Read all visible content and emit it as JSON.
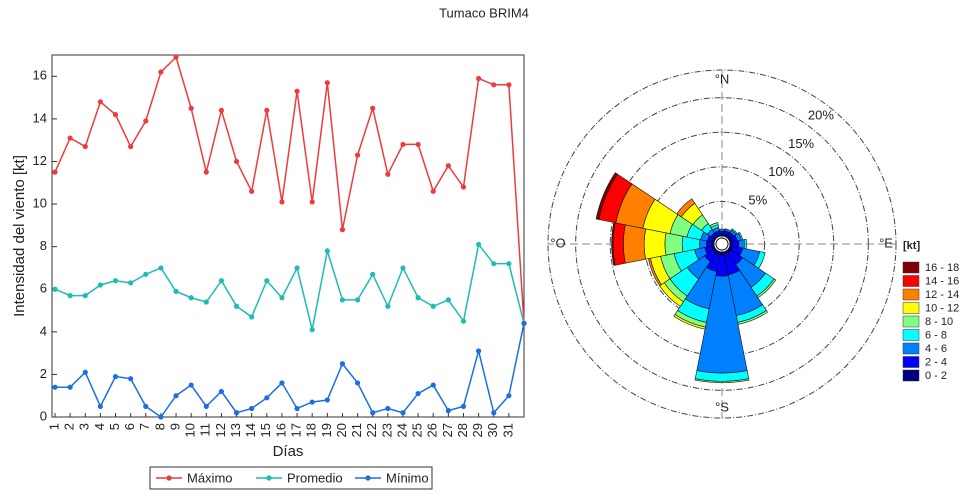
{
  "title": "Tumaco BRIM4",
  "chart_data": [
    {
      "type": "line",
      "ylabel": "Intensidad del viento [kt]",
      "xlabel": "Días",
      "categories": [
        "1",
        "2",
        "3",
        "4",
        "5",
        "6",
        "7",
        "8",
        "9",
        "10",
        "11",
        "12",
        "13",
        "14",
        "15",
        "16",
        "17",
        "18",
        "19",
        "20",
        "21",
        "22",
        "23",
        "24",
        "25",
        "26",
        "27",
        "28",
        "29",
        "30",
        "31",
        null
      ],
      "ylim": [
        0,
        17
      ],
      "yticks": [
        0,
        2,
        4,
        6,
        8,
        10,
        12,
        14,
        16
      ],
      "series": [
        {
          "name": "Máximo",
          "color": "#ee3b3b",
          "values": [
            11.5,
            13.1,
            12.7,
            14.8,
            14.2,
            12.7,
            13.9,
            16.2,
            16.9,
            14.5,
            11.5,
            14.4,
            12.0,
            10.6,
            14.4,
            10.1,
            15.3,
            10.1,
            15.7,
            8.8,
            12.3,
            14.5,
            11.4,
            12.8,
            12.8,
            10.6,
            11.8,
            10.8,
            15.9,
            15.6,
            15.6,
            4.4
          ]
        },
        {
          "name": "Promedio",
          "color": "#1fbcb4",
          "values": [
            6.0,
            5.7,
            5.7,
            6.2,
            6.4,
            6.3,
            6.7,
            7.0,
            5.9,
            5.6,
            5.4,
            6.4,
            5.2,
            4.7,
            6.4,
            5.6,
            7.0,
            4.1,
            7.8,
            5.5,
            5.5,
            6.7,
            5.2,
            7.0,
            5.6,
            5.2,
            5.5,
            4.5,
            8.1,
            7.2,
            7.2,
            4.4
          ]
        },
        {
          "name": "Mínimo",
          "color": "#1c6fe3",
          "values": [
            1.4,
            1.4,
            2.1,
            0.5,
            1.9,
            1.8,
            0.5,
            0.0,
            1.0,
            1.5,
            0.5,
            1.2,
            0.2,
            0.4,
            0.9,
            1.6,
            0.4,
            0.7,
            0.8,
            2.5,
            1.6,
            0.2,
            0.4,
            0.2,
            1.1,
            1.5,
            0.3,
            0.5,
            3.1,
            0.2,
            1.0,
            4.4
          ]
        }
      ]
    },
    {
      "type": "windrose",
      "angles": [
        0,
        22.5,
        45,
        67.5,
        90,
        112.5,
        135,
        157.5,
        180,
        202.5,
        225,
        247.5,
        270,
        292.5,
        315,
        337.5
      ],
      "direction_labels": [
        {
          "value": 0,
          "label": "°N"
        },
        {
          "value": 90,
          "label": "°E"
        },
        {
          "value": 180,
          "label": "°S"
        },
        {
          "value": 270,
          "label": "°O"
        }
      ],
      "rlim": [
        0,
        24
      ],
      "rticks": [
        {
          "value": 5,
          "label": "5%"
        },
        {
          "value": 10,
          "label": "10%"
        },
        {
          "value": 15,
          "label": "15%"
        },
        {
          "value": 20,
          "label": "20%"
        }
      ],
      "legend_title": "[kt]",
      "series": [
        {
          "name": "0 - 2",
          "color": "#000080",
          "values": [
            0.3,
            0.3,
            0.3,
            0.3,
            0.3,
            0.4,
            0.4,
            0.4,
            0.5,
            0.4,
            0.4,
            0.4,
            0.3,
            0.3,
            0.3,
            0.3
          ]
        },
        {
          "name": "2 - 4",
          "color": "#0000ff",
          "values": [
            0.4,
            0.5,
            0.6,
            0.8,
            1.0,
            1.5,
            2,
            3,
            3,
            2.5,
            1.5,
            1,
            0.8,
            0.7,
            0.5,
            0.5
          ]
        },
        {
          "name": "4 - 6",
          "color": "#0080ff",
          "values": [
            0.3,
            0.3,
            0.4,
            0.6,
            0.8,
            2.5,
            4,
            6,
            14,
            5.5,
            3,
            1.5,
            1,
            1,
            0.6,
            0.5
          ]
        },
        {
          "name": "6 - 8",
          "color": "#00ffff",
          "values": [
            0,
            0,
            0.2,
            0.2,
            0.3,
            0.8,
            1.5,
            1,
            1.2,
            2,
            3,
            3,
            2.5,
            2,
            1,
            0.4
          ]
        },
        {
          "name": "8 - 10",
          "color": "#80ff80",
          "values": [
            0,
            0,
            0,
            0,
            0,
            0,
            0.3,
            0.3,
            0.2,
            0.7,
            1,
            2,
            2.5,
            2.5,
            1.5,
            0.3
          ]
        },
        {
          "name": "10 - 12",
          "color": "#ffff00",
          "values": [
            0,
            0,
            0,
            0,
            0,
            0,
            0,
            0,
            0,
            0.3,
            0.8,
            1.5,
            3,
            4,
            2,
            0
          ]
        },
        {
          "name": "12 - 14",
          "color": "#ff8000",
          "values": [
            0,
            0,
            0,
            0,
            0,
            0,
            0,
            0,
            0,
            0,
            0,
            0.3,
            3,
            4,
            0.8,
            0
          ]
        },
        {
          "name": "14 - 16",
          "color": "#ff0000",
          "values": [
            0,
            0,
            0,
            0,
            0,
            0,
            0,
            0,
            0,
            0,
            0,
            0,
            1.5,
            2.5,
            0,
            0
          ]
        },
        {
          "name": "16 - 18",
          "color": "#800000",
          "values": [
            0,
            0,
            0,
            0,
            0,
            0,
            0,
            0,
            0,
            0,
            0,
            0,
            0.2,
            0.4,
            0,
            0
          ]
        }
      ]
    }
  ]
}
